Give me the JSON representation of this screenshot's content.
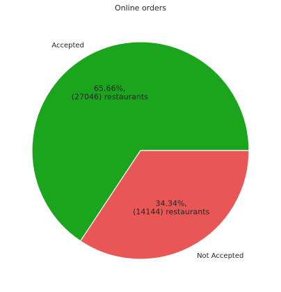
{
  "chart_data": {
    "type": "pie",
    "title": "Online orders",
    "categories": [
      "Accepted",
      "Not Accepted"
    ],
    "values": [
      27046,
      14144
    ],
    "percent_labels": [
      "65.66%,",
      "34.34%,"
    ],
    "count_labels": [
      "(27046) restaurants",
      "(14144) restaurants"
    ],
    "colors": [
      "#1aa51d",
      "#e85756"
    ],
    "edge_color": "#ffffff"
  }
}
